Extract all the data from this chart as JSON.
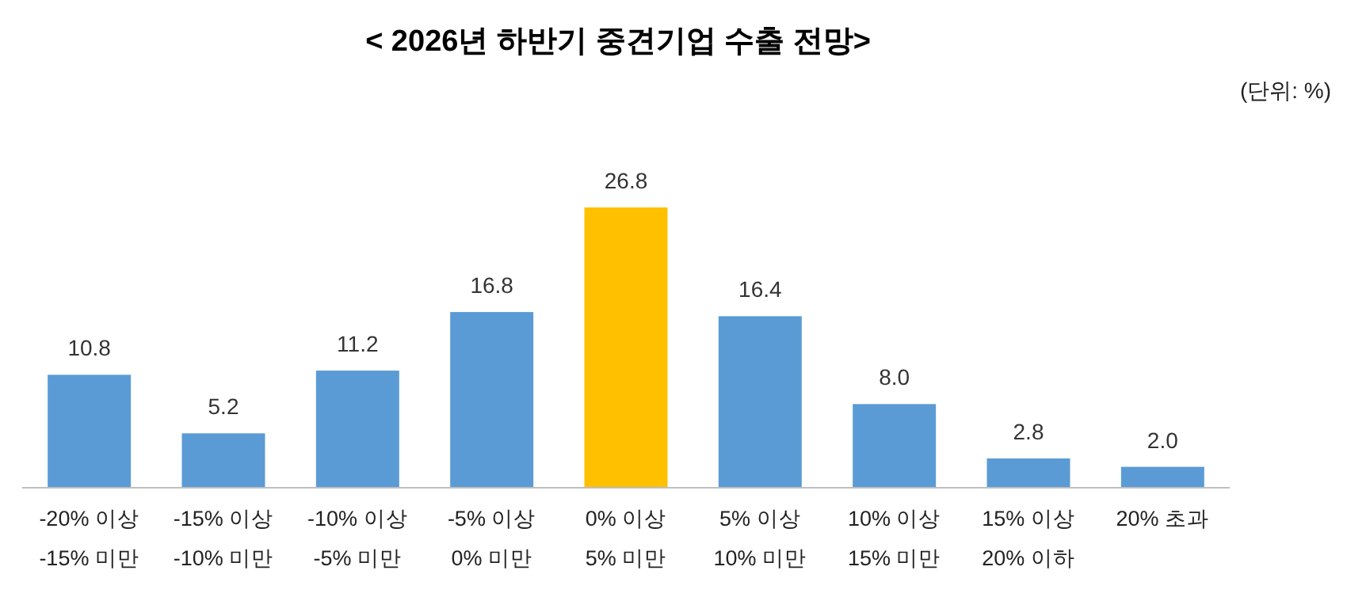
{
  "chart_data": {
    "type": "bar",
    "title": "< 2026년 하반기 중견기업 수출 전망>",
    "annotations": [
      "(단위: %)"
    ],
    "categories": [
      "-20% 이상\n-15% 미만",
      "-15% 이상\n-10% 미만",
      "-10% 이상\n-5% 미만",
      "-5% 이상\n0% 미만",
      "0% 이상\n5% 미만",
      "5% 이상\n10% 미만",
      "10% 이상\n15% 미만",
      "15% 이상\n20% 이하",
      "20% 초과"
    ],
    "values": [
      10.8,
      5.2,
      11.2,
      16.8,
      26.8,
      16.4,
      8.0,
      2.8,
      2.0
    ],
    "value_labels": [
      "10.8",
      "5.2",
      "11.2",
      "16.8",
      "26.8",
      "16.4",
      "8.0",
      "2.8",
      "2.0"
    ],
    "colors": [
      "#5b9bd5",
      "#5b9bd5",
      "#5b9bd5",
      "#5b9bd5",
      "#ffc000",
      "#5b9bd5",
      "#5b9bd5",
      "#5b9bd5",
      "#5b9bd5"
    ]
  }
}
